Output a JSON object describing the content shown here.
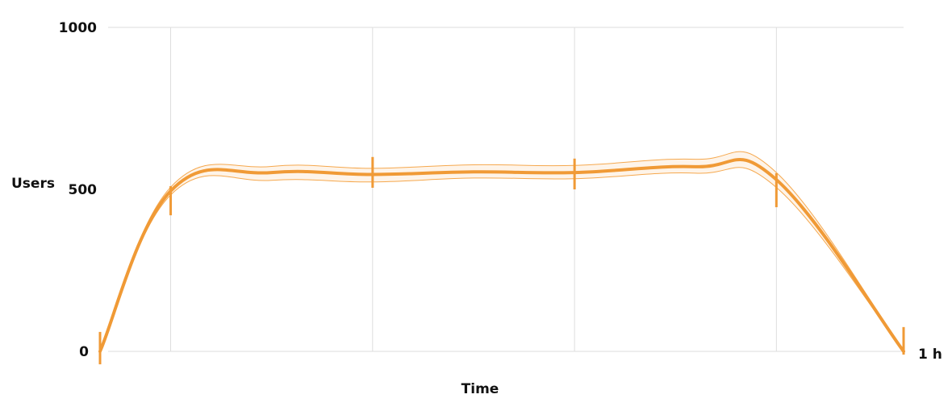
{
  "chart_data": {
    "type": "line",
    "xlabel": "Time",
    "ylabel": "Users",
    "x_end_label": "1 h",
    "yticks": [
      {
        "value": 0,
        "label": "0"
      },
      {
        "value": 500,
        "label": "500"
      },
      {
        "value": 1000,
        "label": "1000"
      }
    ],
    "ylim": [
      0,
      1000
    ],
    "xlim": [
      0,
      1
    ],
    "grid": true,
    "vertical_grid_at": [
      0.0879,
      0.3392,
      0.5905,
      0.8417
    ],
    "series": [
      {
        "values": [
          {
            "x": 0.0,
            "y": 0
          },
          {
            "x": 0.0879,
            "y": 495
          },
          {
            "x": 0.2135,
            "y": 552
          },
          {
            "x": 0.3392,
            "y": 546
          },
          {
            "x": 0.4648,
            "y": 554
          },
          {
            "x": 0.5905,
            "y": 552
          },
          {
            "x": 0.7412,
            "y": 570
          },
          {
            "x": 0.8417,
            "y": 530
          },
          {
            "x": 1.0,
            "y": 0
          }
        ],
        "band_upper": [
          0,
          507,
          571,
          565,
          576,
          574,
          593,
          552,
          0
        ],
        "band_lower": [
          0,
          483,
          528,
          523,
          535,
          533,
          550,
          506,
          0
        ],
        "error_bars": [
          {
            "x": 0.0,
            "low": -40,
            "high": 60
          },
          {
            "x": 0.0879,
            "low": 420,
            "high": 510
          },
          {
            "x": 0.3392,
            "low": 505,
            "high": 600
          },
          {
            "x": 0.5905,
            "low": 500,
            "high": 595
          },
          {
            "x": 0.8417,
            "low": 445,
            "high": 550
          },
          {
            "x": 1.0,
            "low": -10,
            "high": 75
          }
        ]
      }
    ],
    "colors": {
      "line": "#f09a36",
      "band": "#f5a84e",
      "grid": "#dddddd"
    }
  }
}
